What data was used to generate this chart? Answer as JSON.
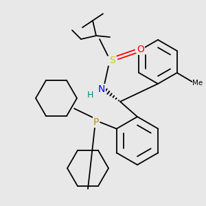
{
  "background_color": "#e8e8e8",
  "atom_colors": {
    "S": "#cccc00",
    "O": "#ff0000",
    "N": "#0000ff",
    "P": "#cc8800",
    "H": "#008888",
    "C": "#000000"
  }
}
